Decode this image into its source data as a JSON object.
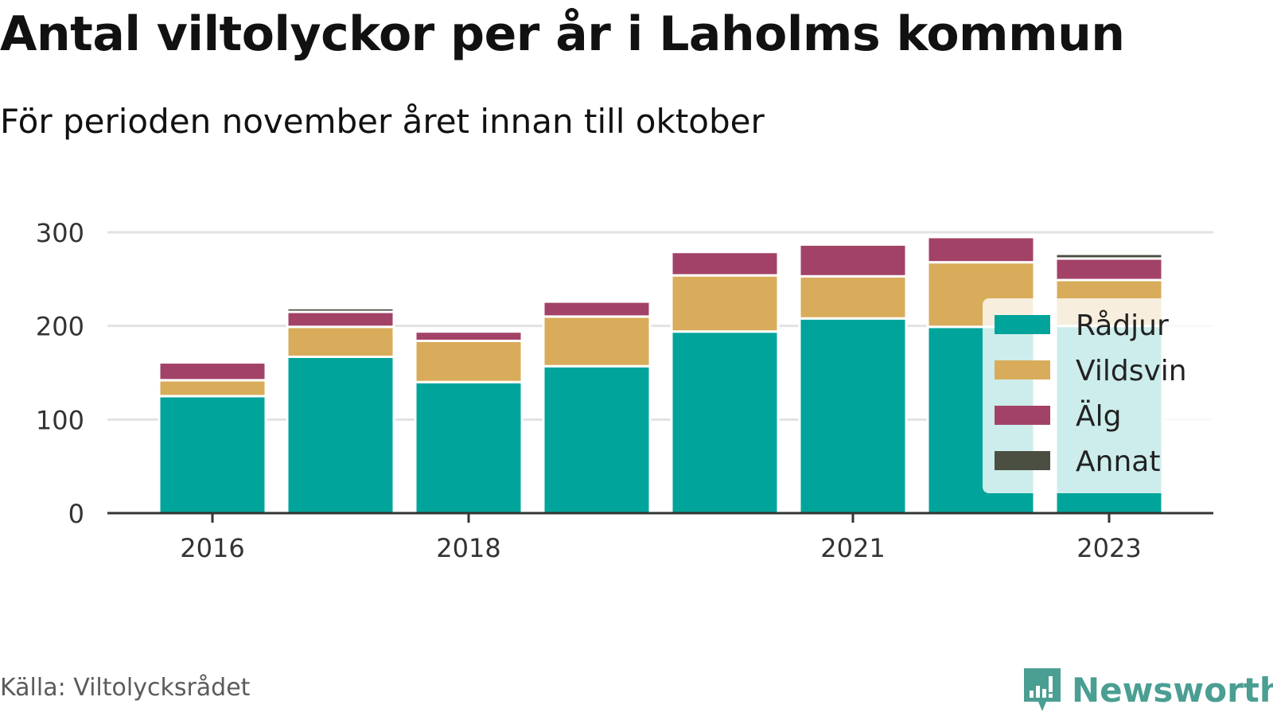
{
  "header": {
    "title": "Antal viltolyckor per år i Laholms kommun",
    "subtitle": "För perioden november året innan till oktober"
  },
  "footer": {
    "source": "Källa: Viltolycksrådet",
    "brand": "Newsworthy",
    "brand_icon": "newsworthy-bar-chart-icon"
  },
  "colors": {
    "Rådjur": "#00a49a",
    "Vildsvin": "#d8ac5a",
    "Älg": "#a34267",
    "Annat": "#4b4f42",
    "grid": "#e2e2e2",
    "axis": "#333333",
    "brand": "#4a9e92"
  },
  "chart_data": {
    "type": "bar",
    "stacked": true,
    "categories": [
      "2016",
      "2017",
      "2018",
      "2019",
      "2020",
      "2021",
      "2022",
      "2023"
    ],
    "x_tick_labels": [
      "2016",
      "2018",
      "2021",
      "2023"
    ],
    "y_ticks": [
      0,
      100,
      200,
      300
    ],
    "ylim": [
      0,
      300
    ],
    "grid": true,
    "legend_position": "right",
    "series": [
      {
        "name": "Rådjur",
        "values": [
          125,
          167,
          140,
          157,
          194,
          208,
          199,
          200
        ]
      },
      {
        "name": "Vildsvin",
        "values": [
          17,
          32,
          44,
          53,
          60,
          45,
          69,
          49
        ]
      },
      {
        "name": "Älg",
        "values": [
          19,
          16,
          10,
          16,
          25,
          34,
          27,
          23
        ]
      },
      {
        "name": "Annat",
        "values": [
          0,
          4,
          0,
          2,
          0,
          2,
          2,
          5
        ]
      }
    ]
  }
}
